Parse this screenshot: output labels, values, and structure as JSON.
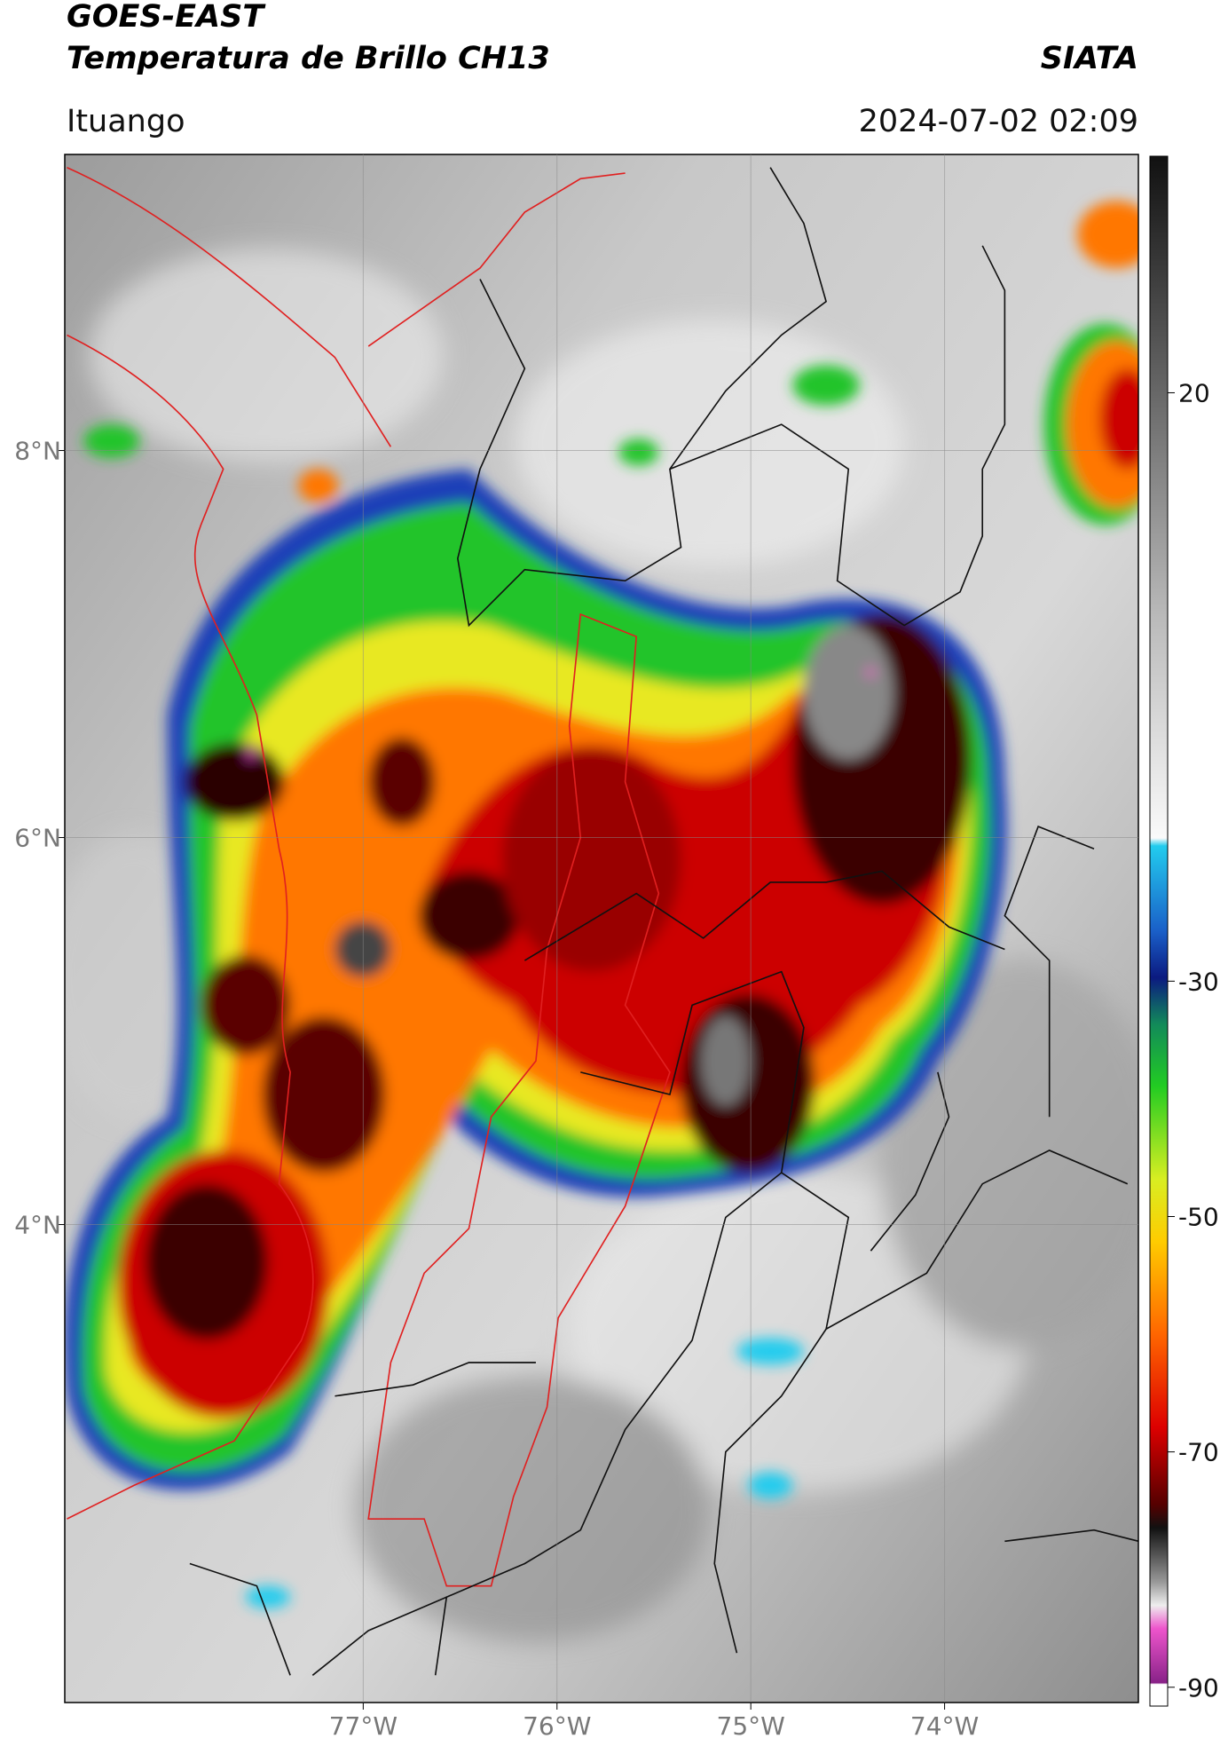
{
  "map": {
    "title": "GOES-EAST",
    "subtitle": "Temperatura de Brillo CH13",
    "source": "SIATA",
    "location": "Ituango",
    "timestamp": "2024-07-02 02:09",
    "xlim": [
      -78.54,
      -73.0
    ],
    "ylim": [
      1.53,
      9.53
    ],
    "xticks": [
      {
        "value": -77,
        "label": "77°W"
      },
      {
        "value": -76,
        "label": "76°W"
      },
      {
        "value": -75,
        "label": "75°W"
      },
      {
        "value": -74,
        "label": "74°W"
      }
    ],
    "yticks": [
      {
        "value": 8,
        "label": "8°N"
      },
      {
        "value": 6,
        "label": "6°N"
      },
      {
        "value": 4,
        "label": "4°N"
      }
    ],
    "grid": true,
    "colorbar": {
      "clim": [
        -91.6,
        40.1
      ],
      "ticks": [
        20,
        -30,
        -50,
        -70,
        -90
      ]
    }
  }
}
